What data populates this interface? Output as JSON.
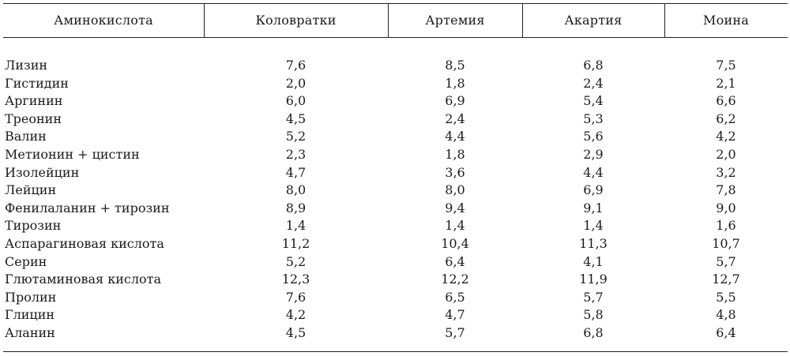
{
  "table": {
    "headers": [
      "Аминокислота",
      "Коловратки",
      "Артемия",
      "Акартия",
      "Моина"
    ],
    "rows": [
      {
        "name": "Лизин",
        "values": [
          "7,6",
          "8,5",
          "6,8",
          "7,5"
        ]
      },
      {
        "name": "Гистидин",
        "values": [
          "2,0",
          "1,8",
          "2,4",
          "2,1"
        ]
      },
      {
        "name": "Аргинин",
        "values": [
          "6,0",
          "6,9",
          "5,4",
          "6,6"
        ]
      },
      {
        "name": "Треонин",
        "values": [
          "4,5",
          "2,4",
          "5,3",
          "6,2"
        ]
      },
      {
        "name": "Валин",
        "values": [
          "5,2",
          "4,4",
          "5,6",
          "4,2"
        ]
      },
      {
        "name": "Метионин + цистин",
        "values": [
          "2,3",
          "1,8",
          "2,9",
          "2,0"
        ]
      },
      {
        "name": "Изолейцин",
        "values": [
          "4,7",
          "3,6",
          "4,4",
          "3,2"
        ]
      },
      {
        "name": "Лейцин",
        "values": [
          "8,0",
          "8,0",
          "6,9",
          "7,8"
        ]
      },
      {
        "name": "Фенилаланин + тирозин",
        "values": [
          "8,9",
          "9,4",
          "9,1",
          "9,0"
        ]
      },
      {
        "name": "Тирозин",
        "values": [
          "1,4",
          "1,4",
          "1,4",
          "1,6"
        ]
      },
      {
        "name": "Аспарагиновая кислота",
        "values": [
          "11,2",
          "10,4",
          "11,3",
          "10,7"
        ]
      },
      {
        "name": "Серин",
        "values": [
          "5,2",
          "6,4",
          "4,1",
          "5,7"
        ]
      },
      {
        "name": "Глютаминовая кислота",
        "values": [
          "12,3",
          "12,2",
          "11,9",
          "12,7"
        ]
      },
      {
        "name": "Пролин",
        "values": [
          "7,6",
          "6,5",
          "5,7",
          "5,5"
        ]
      },
      {
        "name": "Глицин",
        "values": [
          "4,2",
          "4,7",
          "5,8",
          "4,8"
        ]
      },
      {
        "name": "Аланин",
        "values": [
          "4,5",
          "5,7",
          "6,8",
          "6,4"
        ]
      }
    ]
  }
}
